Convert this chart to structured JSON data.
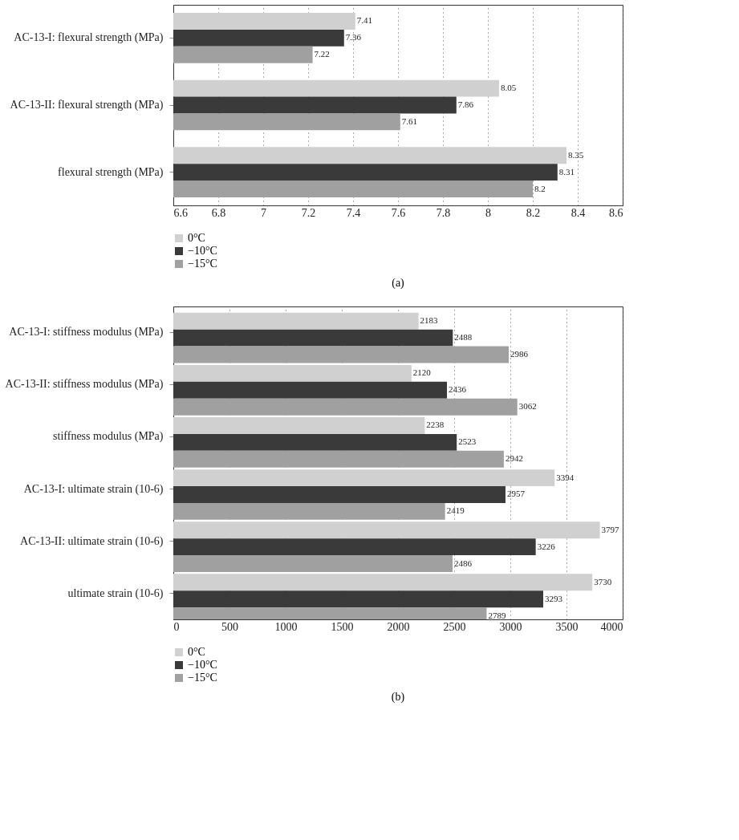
{
  "chart_data": [
    {
      "type": "bar",
      "orientation": "horizontal",
      "categories": [
        "AC-13-I: flexural strength (MPa)",
        "AC-13-II: flexural strength (MPa)",
        "flexural strength (MPa)"
      ],
      "series": [
        {
          "name": "0°C",
          "color": "#d0d0d0",
          "values": [
            7.41,
            8.05,
            8.35
          ]
        },
        {
          "name": "−10°C",
          "color": "#3a3a3a",
          "values": [
            7.36,
            7.86,
            8.31
          ]
        },
        {
          "name": "−15°C",
          "color": "#a0a0a0",
          "values": [
            7.22,
            7.61,
            8.2
          ]
        }
      ],
      "xlim": [
        6.6,
        8.6
      ],
      "xticks": [
        6.6,
        6.8,
        7,
        7.2,
        7.4,
        7.6,
        7.8,
        8,
        8.2,
        8.4,
        8.6
      ],
      "grid": "x",
      "legend": "bottom left",
      "data_labels": true,
      "annotations": [
        "(a)"
      ]
    },
    {
      "type": "bar",
      "orientation": "horizontal",
      "categories": [
        "AC-13-I: stiffness modulus (MPa)",
        "AC-13-II: stiffness modulus (MPa)",
        "stiffness modulus (MPa)",
        "AC-13-I: ultimate strain (10-6)",
        "AC-13-II: ultimate strain (10-6)",
        "ultimate strain (10-6)"
      ],
      "series": [
        {
          "name": "0°C",
          "color": "#d0d0d0",
          "values": [
            2183,
            2120,
            2238,
            3394,
            3797,
            3730
          ]
        },
        {
          "name": "−10°C",
          "color": "#3a3a3a",
          "values": [
            2488,
            2436,
            2523,
            2957,
            3226,
            3293
          ]
        },
        {
          "name": "−15°C",
          "color": "#a0a0a0",
          "values": [
            2986,
            3062,
            2942,
            2419,
            2486,
            2789
          ]
        }
      ],
      "xlim": [
        0,
        4000
      ],
      "xticks": [
        0,
        500,
        1000,
        1500,
        2000,
        2500,
        3000,
        3500,
        4000
      ],
      "grid": "x",
      "legend": "bottom left",
      "data_labels": true,
      "annotations": [
        "(b)"
      ]
    }
  ]
}
